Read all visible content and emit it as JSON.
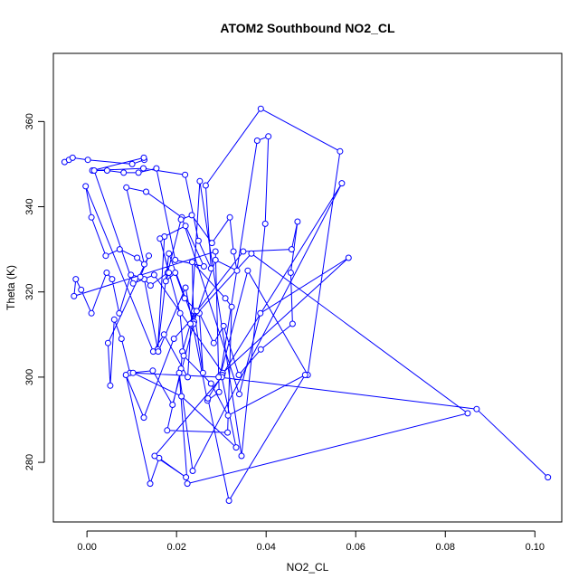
{
  "chart_data": {
    "type": "line",
    "title": "ATOM2 Southbound NO2_CL",
    "xlabel": "NO2_CL",
    "ylabel": "Theta (K)",
    "xlim": [
      -0.0075,
      0.106
    ],
    "ylim": [
      266,
      376
    ],
    "xticks": [
      0.0,
      0.02,
      0.04,
      0.06,
      0.08,
      0.1
    ],
    "xtick_labels": [
      "0.00",
      "0.02",
      "0.04",
      "0.06",
      "0.08",
      "0.10"
    ],
    "yticks": [
      280,
      300,
      320,
      340,
      360
    ],
    "ytick_labels": [
      "280",
      "300",
      "320",
      "340",
      "360"
    ],
    "grid": false,
    "legend": "none",
    "markers": "open-circle",
    "line_color": "#0000ff",
    "series": [
      {
        "x": [
          -0.005,
          -0.004,
          -0.0032,
          0.0002,
          0.0101,
          0.0128,
          0.0127,
          0.0012,
          0.0126,
          0.0219,
          0.0249,
          0.0277,
          0.0265,
          0.0388,
          0.0565,
          0.0493,
          0.0359,
          0.0298,
          0.038,
          0.0405,
          0.0398,
          0.0345,
          0.0252,
          0.0225,
          0.0172,
          0.0148,
          -0.0003,
          0.001,
          0.0042,
          0.0073,
          0.0112,
          0.0128,
          0.0088,
          0.0132,
          0.0212,
          0.034,
          0.0387,
          0.0584,
          0.0303,
          0.015,
          0.0103,
          0.0016,
          0.0045,
          0.0082,
          0.0115,
          0.0155,
          0.0197,
          0.0261,
          0.022,
          0.0173,
          0.0158,
          0.0183,
          0.0239,
          0.0287,
          0.0335,
          0.0327,
          0.0319,
          0.0279,
          0.0234,
          0.021,
          0.018,
          0.0142,
          0.0128,
          0.0159,
          0.022,
          0.0269,
          0.0295,
          0.0287,
          -0.0029,
          -0.0025,
          -0.0013,
          0.001,
          0.0044,
          0.0056,
          0.0072,
          0.0098,
          0.0119,
          0.0138,
          0.0047,
          0.0052,
          0.0061,
          0.0077,
          0.0096,
          0.0147,
          0.0191,
          0.0238,
          0.0235,
          0.0309,
          0.0323,
          0.0314,
          0.0179,
          0.021,
          0.0213,
          0.0231,
          0.0239,
          0.0259,
          0.0251,
          0.0283,
          0.0305,
          0.0339,
          0.0388,
          0.0459,
          0.0455,
          0.047,
          0.0457,
          0.0349,
          0.0245,
          0.0218,
          0.0197,
          0.0176,
          0.0183,
          0.0163,
          0.0208,
          0.0216,
          0.0277,
          0.0315,
          0.0487,
          0.0317,
          0.027,
          0.0302,
          0.0569,
          0.0236,
          0.0206,
          0.0224,
          0.085,
          0.0367,
          0.0194,
          0.0127,
          0.0087,
          0.0141,
          0.0161,
          0.0221,
          0.0151,
          0.0301,
          0.0333,
          0.0211,
          0.0103,
          0.0294,
          0.087,
          0.1029
        ],
        "y": [
          350.5,
          351.0,
          351.5,
          351.0,
          350.0,
          351.0,
          351.5,
          348.5,
          349.0,
          347.5,
          332.0,
          325.5,
          345.0,
          363.0,
          353.0,
          300.5,
          325.0,
          300.5,
          355.5,
          356.5,
          336.0,
          281.5,
          346.0,
          300.0,
          310.0,
          306.0,
          344.8,
          337.5,
          328.5,
          330.0,
          328.0,
          326.5,
          344.5,
          343.5,
          337.5,
          296.0,
          315.0,
          328.0,
          301.0,
          324.0,
          322.0,
          348.5,
          348.5,
          348.0,
          348.0,
          349.0,
          327.5,
          326.0,
          335.5,
          333.0,
          306.5,
          329.0,
          313.0,
          327.5,
          325.0,
          329.5,
          337.5,
          331.5,
          338.0,
          337.0,
          324.5,
          321.5,
          323.0,
          306.0,
          321.0,
          294.5,
          296.5,
          329.5,
          319.0,
          323.0,
          320.5,
          315.0,
          324.5,
          323.0,
          315.0,
          324.0,
          323.5,
          328.5,
          308.0,
          298.0,
          313.5,
          309.0,
          301.0,
          301.5,
          293.5,
          312.5,
          327.0,
          318.5,
          316.5,
          287.0,
          287.5,
          302.0,
          306.0,
          312.5,
          315.5,
          301.0,
          315.0,
          308.0,
          312.0,
          300.5,
          306.5,
          312.5,
          324.5,
          336.5,
          330.0,
          329.5,
          315.5,
          318.5,
          324.5,
          322.5,
          324.5,
          332.5,
          315.0,
          305.0,
          298.5,
          291.0,
          300.5,
          271.0,
          295.0,
          300.5,
          345.5,
          278.0,
          301.0,
          275.0,
          291.5,
          329.0,
          309.0,
          290.5,
          300.5,
          275.0,
          281.0,
          276.5,
          281.5,
          300.0,
          283.5,
          295.5,
          301.0,
          300.0,
          292.5,
          276.5
        ]
      }
    ]
  }
}
